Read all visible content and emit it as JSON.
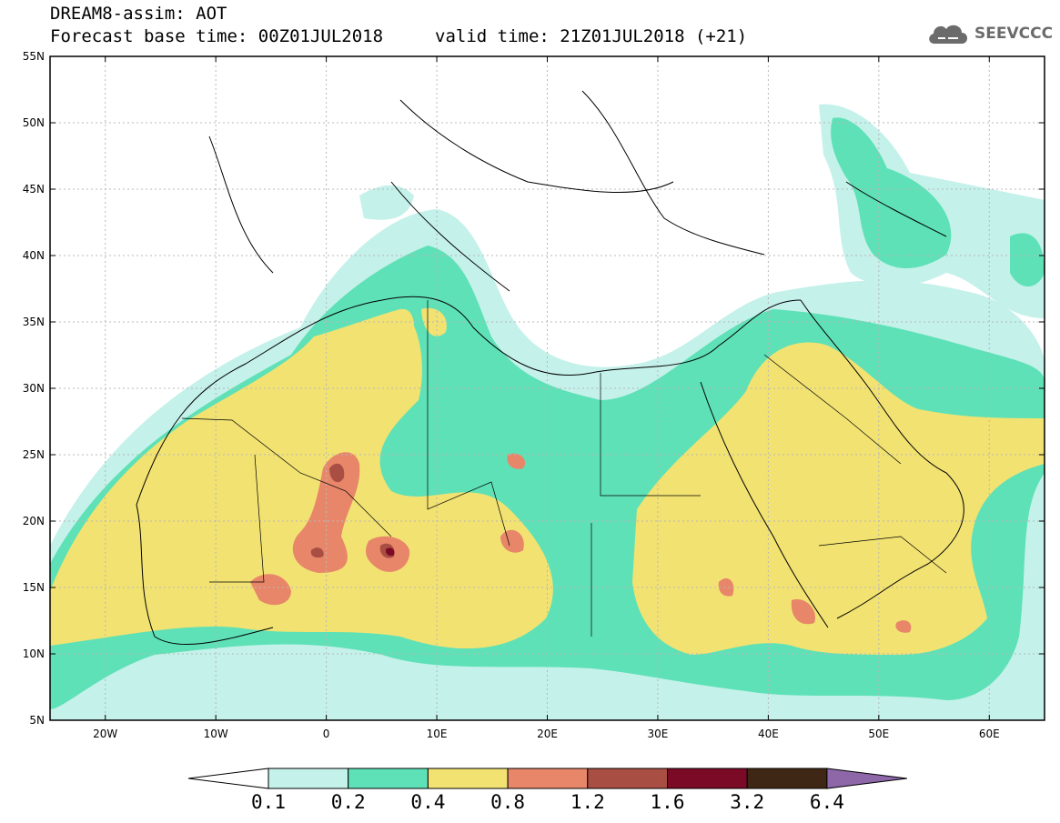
{
  "header": {
    "title": "DREAM8-assim: AOT",
    "base_time_label": "Forecast base time: 00Z01JUL2018",
    "valid_time_label": "valid time: 21Z01JUL2018 (+21)",
    "logo_text": "SEEVCCC"
  },
  "map": {
    "variable": "Aerosol Optical Thickness",
    "lon_range": [
      -25,
      65
    ],
    "lat_range": [
      5,
      55
    ],
    "lon_ticks": [
      {
        "value": -20,
        "label": "20W"
      },
      {
        "value": -10,
        "label": "10W"
      },
      {
        "value": 0,
        "label": "0"
      },
      {
        "value": 10,
        "label": "10E"
      },
      {
        "value": 20,
        "label": "20E"
      },
      {
        "value": 30,
        "label": "30E"
      },
      {
        "value": 40,
        "label": "40E"
      },
      {
        "value": 50,
        "label": "50E"
      },
      {
        "value": 60,
        "label": "60E"
      }
    ],
    "lat_ticks": [
      {
        "value": 55,
        "label": "55N"
      },
      {
        "value": 50,
        "label": "50N"
      },
      {
        "value": 45,
        "label": "45N"
      },
      {
        "value": 40,
        "label": "40N"
      },
      {
        "value": 35,
        "label": "35N"
      },
      {
        "value": 30,
        "label": "30N"
      },
      {
        "value": 25,
        "label": "25N"
      },
      {
        "value": 20,
        "label": "20N"
      },
      {
        "value": 15,
        "label": "15N"
      },
      {
        "value": 10,
        "label": "10N"
      },
      {
        "value": 5,
        "label": "5N"
      }
    ]
  },
  "colorbar": {
    "colors": [
      "#ffffff",
      "#c4f1ea",
      "#5ee1b6",
      "#f2e272",
      "#e8866a",
      "#a94e43",
      "#7a0a25",
      "#3f2715",
      "#8e67a9"
    ],
    "labels": [
      "0.1",
      "0.2",
      "0.4",
      "0.8",
      "1.2",
      "1.6",
      "3.2",
      "6.4"
    ]
  }
}
